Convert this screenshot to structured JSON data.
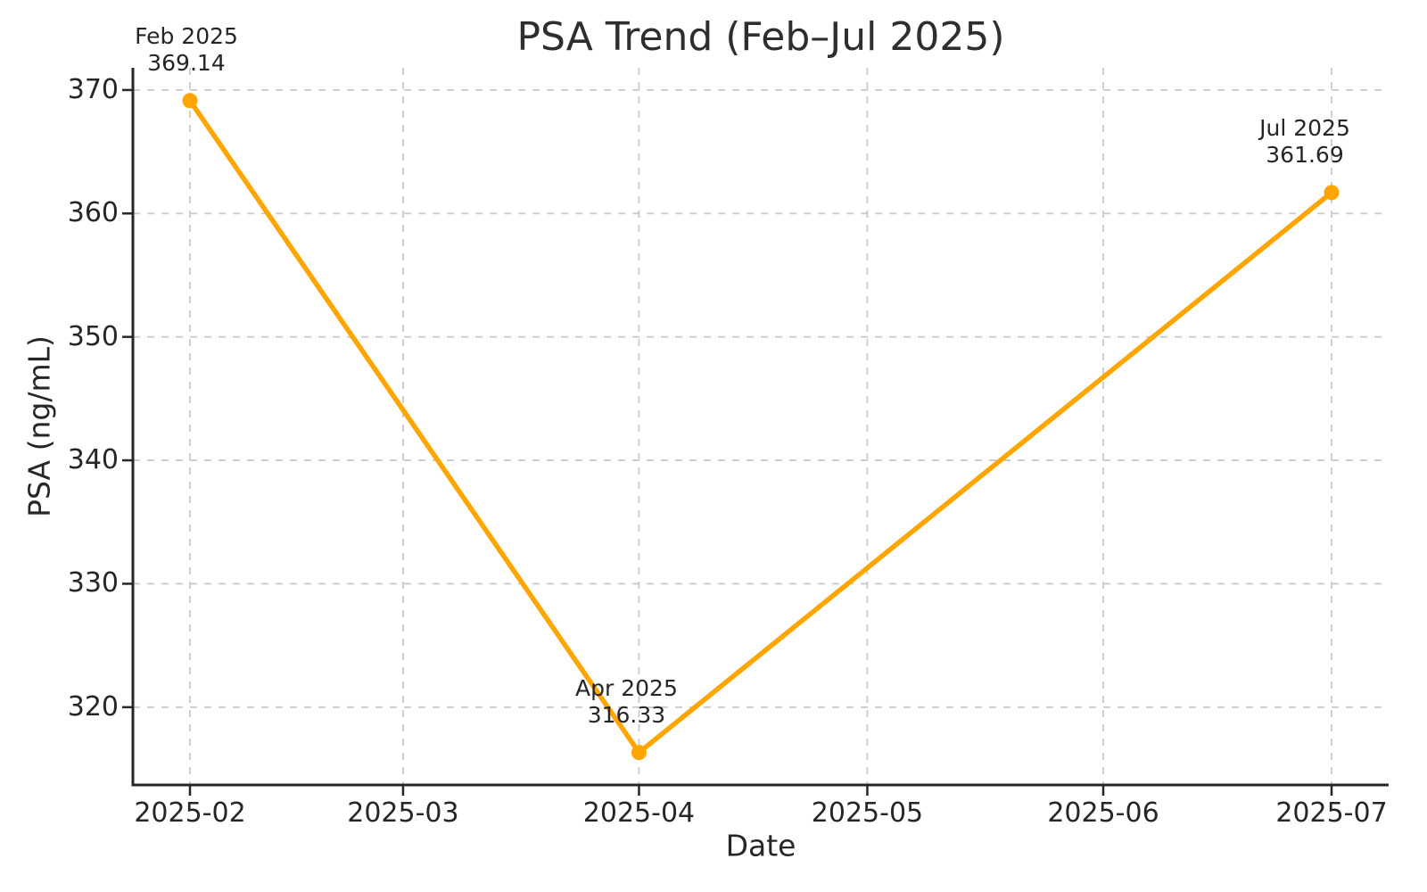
{
  "window": {
    "background": "#ffffff"
  },
  "colors": {
    "line": "#FFA500",
    "marker": "#FFA500",
    "text": "#262626",
    "grid": "#c9c9c9",
    "axis": "#262626"
  },
  "chart_data": {
    "type": "line",
    "title": "PSA Trend (Feb–Jul 2025)",
    "xlabel": "Date",
    "ylabel": "PSA (ng/mL)",
    "x": [
      "2025-02-01",
      "2025-04-01",
      "2025-07-01"
    ],
    "series": [
      {
        "name": "PSA",
        "color": "#FFA500",
        "marker": "circle",
        "values": [
          369.14,
          316.33,
          361.69
        ]
      }
    ],
    "point_annotations": [
      {
        "label": "Feb 2025",
        "value": "369.14"
      },
      {
        "label": "Apr 2025",
        "value": "316.33"
      },
      {
        "label": "Jul 2025",
        "value": "361.69"
      }
    ],
    "x_ticks": [
      {
        "date": "2025-02-01",
        "label": "2025-02"
      },
      {
        "date": "2025-03-01",
        "label": "2025-03"
      },
      {
        "date": "2025-04-01",
        "label": "2025-04"
      },
      {
        "date": "2025-05-01",
        "label": "2025-05"
      },
      {
        "date": "2025-06-01",
        "label": "2025-06"
      },
      {
        "date": "2025-07-01",
        "label": "2025-07"
      }
    ],
    "y_ticks": [
      320,
      330,
      340,
      350,
      360,
      370
    ],
    "ylim": [
      313.7,
      371.8
    ],
    "x_margin_frac": 0.05,
    "grid": true,
    "grid_style": "dashed",
    "legend": "none"
  }
}
